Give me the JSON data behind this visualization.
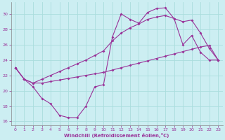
{
  "xlabel": "Windchill (Refroidissement éolien,°C)",
  "xlim": [
    -0.5,
    23.5
  ],
  "ylim": [
    15.5,
    31.5
  ],
  "yticks": [
    16,
    18,
    20,
    22,
    24,
    26,
    28,
    30
  ],
  "xticks": [
    0,
    1,
    2,
    3,
    4,
    5,
    6,
    7,
    8,
    9,
    10,
    11,
    12,
    13,
    14,
    15,
    16,
    17,
    18,
    19,
    20,
    21,
    22,
    23
  ],
  "bg_color": "#cceef2",
  "line_color": "#993399",
  "grid_color": "#aadddd",
  "line1_y": [
    23.0,
    21.5,
    20.5,
    19.0,
    18.3,
    16.8,
    16.5,
    16.5,
    18.0,
    20.5,
    20.8,
    27.0,
    30.0,
    29.3,
    28.8,
    30.2,
    30.7,
    30.8,
    29.4,
    26.0,
    27.2,
    25.0,
    24.0,
    24.0
  ],
  "line2_y": [
    23.0,
    21.5,
    21.0,
    21.0,
    21.2,
    21.4,
    21.6,
    21.8,
    22.0,
    22.2,
    22.4,
    22.7,
    23.0,
    23.3,
    23.6,
    23.9,
    24.2,
    24.5,
    24.8,
    25.1,
    25.4,
    25.7,
    25.9,
    24.0
  ],
  "line3_y": [
    23.0,
    21.5,
    21.0,
    21.5,
    22.0,
    22.5,
    23.0,
    23.5,
    24.0,
    24.6,
    25.2,
    26.5,
    27.5,
    28.2,
    28.7,
    29.3,
    29.6,
    29.8,
    29.4,
    29.0,
    29.2,
    27.5,
    25.5,
    24.0
  ]
}
